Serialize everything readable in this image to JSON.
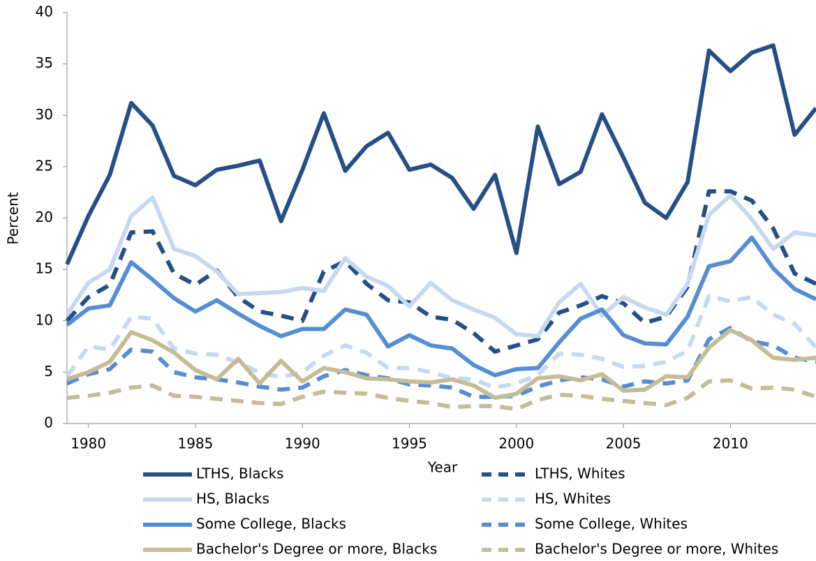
{
  "chart_data": {
    "type": "line",
    "x_label": "Year",
    "y_label": "Percent",
    "x": [
      1979,
      1980,
      1981,
      1982,
      1983,
      1984,
      1985,
      1986,
      1987,
      1988,
      1989,
      1990,
      1991,
      1992,
      1993,
      1994,
      1995,
      1996,
      1997,
      1998,
      1999,
      2000,
      2001,
      2002,
      2003,
      2004,
      2005,
      2006,
      2007,
      2008,
      2009,
      2010,
      2011,
      2012,
      2013,
      2014
    ],
    "xlim": [
      1979,
      2014
    ],
    "xticks": [
      1980,
      1985,
      1990,
      1995,
      2000,
      2005,
      2010
    ],
    "ylim": [
      0,
      40
    ],
    "yticks": [
      0,
      5,
      10,
      15,
      20,
      25,
      30,
      35,
      40
    ],
    "grid": false,
    "series": [
      {
        "name": "LTHS, Blacks",
        "color": "#254f86",
        "dashed": false,
        "values": [
          15.5,
          20.2,
          24.2,
          31.2,
          29.0,
          24.1,
          23.2,
          24.7,
          25.1,
          25.6,
          19.7,
          24.7,
          30.2,
          24.6,
          27.0,
          28.3,
          24.7,
          25.2,
          23.9,
          20.9,
          24.2,
          16.6,
          28.9,
          23.3,
          24.5,
          30.1,
          25.9,
          21.5,
          20.0,
          23.5,
          36.3,
          34.3,
          36.1,
          36.8,
          28.1,
          30.7
        ]
      },
      {
        "name": "LTHS, Whites",
        "color": "#254f86",
        "dashed": true,
        "values": [
          10.0,
          12.3,
          13.5,
          18.6,
          18.7,
          14.6,
          13.5,
          14.9,
          12.3,
          10.9,
          10.5,
          10.0,
          14.8,
          15.8,
          13.6,
          12.0,
          11.8,
          10.4,
          10.1,
          8.8,
          7.0,
          7.6,
          8.2,
          10.8,
          11.5,
          12.4,
          11.7,
          9.8,
          10.4,
          13.3,
          22.6,
          22.6,
          21.7,
          19.0,
          14.6,
          13.6
        ]
      },
      {
        "name": "HS, Blacks",
        "color": "#c6d9f1",
        "dashed": false,
        "values": [
          10.6,
          13.7,
          15.0,
          20.2,
          22.0,
          17.0,
          16.3,
          14.8,
          12.6,
          12.7,
          12.8,
          13.2,
          12.9,
          16.1,
          14.3,
          13.4,
          11.4,
          13.7,
          12.0,
          11.1,
          10.3,
          8.7,
          8.5,
          11.8,
          13.6,
          10.5,
          12.3,
          11.3,
          10.6,
          13.6,
          20.3,
          22.2,
          19.9,
          17.0,
          18.6,
          18.3
        ]
      },
      {
        "name": "HS, Whites",
        "color": "#c6d9f1",
        "dashed": true,
        "values": [
          4.6,
          7.5,
          7.2,
          10.4,
          10.2,
          7.3,
          6.8,
          6.7,
          5.9,
          5.0,
          4.5,
          5.0,
          6.6,
          7.6,
          6.9,
          5.4,
          5.4,
          5.0,
          4.4,
          4.3,
          3.5,
          3.9,
          4.7,
          6.8,
          6.7,
          6.3,
          5.5,
          5.6,
          6.0,
          7.1,
          12.4,
          11.9,
          12.3,
          10.6,
          9.7,
          7.4
        ]
      },
      {
        "name": "Some College, Blacks",
        "color": "#558ed5",
        "dashed": false,
        "values": [
          9.6,
          11.2,
          11.5,
          15.7,
          14.0,
          12.2,
          10.9,
          12.0,
          10.7,
          9.5,
          8.5,
          9.2,
          9.2,
          11.1,
          10.6,
          7.5,
          8.6,
          7.6,
          7.3,
          5.7,
          4.7,
          5.3,
          5.4,
          7.9,
          10.2,
          11.1,
          8.6,
          7.8,
          7.7,
          10.4,
          15.3,
          15.8,
          18.1,
          15.1,
          13.1,
          12.1
        ]
      },
      {
        "name": "Some College, Whites",
        "color": "#558ed5",
        "dashed": true,
        "values": [
          3.9,
          4.8,
          5.3,
          7.2,
          7.0,
          5.0,
          4.5,
          4.3,
          4.0,
          3.6,
          3.3,
          3.5,
          4.6,
          5.2,
          4.7,
          4.4,
          3.8,
          3.7,
          3.5,
          2.6,
          2.6,
          2.7,
          3.6,
          4.2,
          4.5,
          4.3,
          3.6,
          4.1,
          3.9,
          4.2,
          8.2,
          9.3,
          8.0,
          7.6,
          6.4,
          6.0
        ]
      },
      {
        "name": "Bachelor's Degree or more, Blacks",
        "color": "#c4bd97",
        "dashed": false,
        "values": [
          4.3,
          5.0,
          6.0,
          8.9,
          8.1,
          6.9,
          5.2,
          4.3,
          6.3,
          3.9,
          6.1,
          4.1,
          5.4,
          5.0,
          4.4,
          4.3,
          4.1,
          4.0,
          4.3,
          3.7,
          2.5,
          2.9,
          4.4,
          4.6,
          4.2,
          4.8,
          3.2,
          3.3,
          4.6,
          4.5,
          7.4,
          9.1,
          8.1,
          6.4,
          6.2,
          6.4
        ]
      },
      {
        "name": "Bachelor's Degree or more, Whites",
        "color": "#c4bd97",
        "dashed": true,
        "values": [
          2.5,
          2.7,
          3.0,
          3.5,
          3.7,
          2.7,
          2.6,
          2.4,
          2.2,
          2.0,
          1.9,
          2.6,
          3.1,
          3.0,
          2.9,
          2.5,
          2.2,
          2.0,
          1.6,
          1.7,
          1.7,
          1.4,
          2.3,
          2.8,
          2.7,
          2.4,
          2.2,
          2.0,
          1.8,
          2.5,
          4.1,
          4.2,
          3.4,
          3.5,
          3.3,
          2.6
        ]
      }
    ]
  }
}
